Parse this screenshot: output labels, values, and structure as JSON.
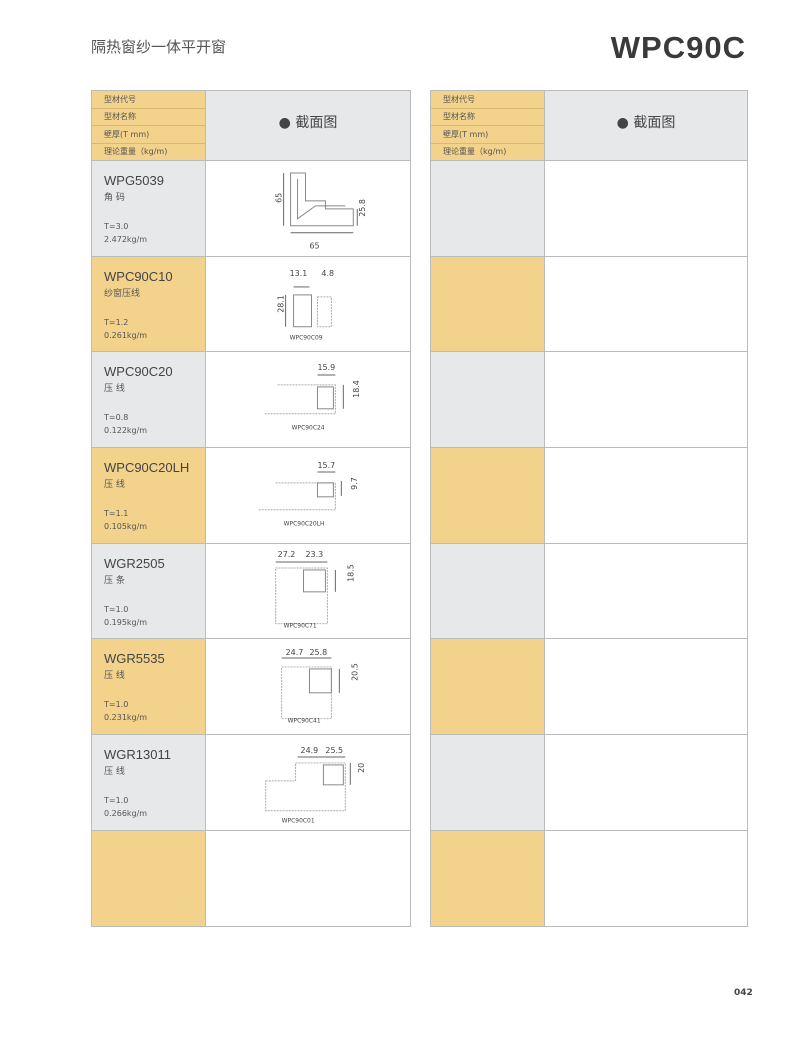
{
  "header": {
    "title": "隔热窗纱一体平开窗",
    "series_code": "WPC90C"
  },
  "table_header": {
    "labels": [
      "型材代号",
      "型材名称",
      "壁厚(T mm)",
      "理论重量（kg/m)"
    ],
    "section_label": "● 截面图"
  },
  "colors": {
    "yellow": "#f3d28c",
    "gray": "#e7e8ea"
  },
  "rows": [
    {
      "code": "WPG5039",
      "name": "角 码",
      "thickness": "T=3.0",
      "weight": "2.472kg/m",
      "dims": [
        "65",
        "25.8",
        "65"
      ],
      "drawing_label": ""
    },
    {
      "code": "WPC90C10",
      "name": "纱窗压线",
      "thickness": "T=1.2",
      "weight": "0.261kg/m",
      "dims": [
        "13.1",
        "4.8",
        "28.1"
      ],
      "drawing_label": "WPC90C09"
    },
    {
      "code": "WPC90C20",
      "name": "压 线",
      "thickness": "T=0.8",
      "weight": "0.122kg/m",
      "dims": [
        "15.9",
        "18.4"
      ],
      "drawing_label": "WPC90C24"
    },
    {
      "code": "WPC90C20LH",
      "name": "压 线",
      "thickness": "T=1.1",
      "weight": "0.105kg/m",
      "dims": [
        "15.7",
        "9.7"
      ],
      "drawing_label": "WPC90C20LH"
    },
    {
      "code": "WGR2505",
      "name": "压 条",
      "thickness": "T=1.0",
      "weight": "0.195kg/m",
      "dims": [
        "27.2",
        "23.3",
        "18.5"
      ],
      "drawing_label": "WPC90C71"
    },
    {
      "code": "WGR5535",
      "name": "压 线",
      "thickness": "T=1.0",
      "weight": "0.231kg/m",
      "dims": [
        "24.7",
        "25.8",
        "20.5"
      ],
      "drawing_label": "WPC90C41"
    },
    {
      "code": "WGR13011",
      "name": "压 线",
      "thickness": "T=1.0",
      "weight": "0.266kg/m",
      "dims": [
        "24.9",
        "25.5",
        "20"
      ],
      "drawing_label": "WPC90C01"
    }
  ],
  "page_number": "042"
}
